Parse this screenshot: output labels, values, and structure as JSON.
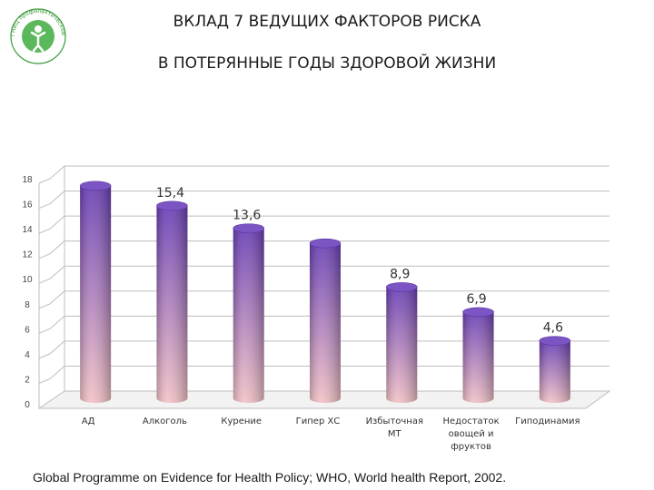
{
  "title_line1": "ВКЛАД 7 ВЕДУЩИХ ФАКТОРОВ РИСКА",
  "title_line2": "В ПОТЕРЯННЫЕ ГОДЫ ЗДОРОВОЙ ЖИЗНИ",
  "logo_text": "ГНИЦ профилактической медицины",
  "source": "Global Programme on Evidence for Health Policy; WHO, World health Report, 2002.",
  "colors": {
    "bar_top": "#6a3fb6",
    "bar_bottom": "#f3c3c6",
    "grid": "#bdbdbd"
  },
  "chart_data": {
    "type": "bar",
    "title": "ВКЛАД 7 ВЕДУЩИХ ФАКТОРОВ РИСКА В ПОТЕРЯННЫЕ ГОДЫ ЗДОРОВОЙ ЖИЗНИ",
    "categories": [
      [
        "АД"
      ],
      [
        "Алкоголь"
      ],
      [
        "Курение"
      ],
      [
        "Гипер ХС"
      ],
      [
        "Избыточная",
        "МТ"
      ],
      [
        "Недостаток",
        "овощей и",
        "фруктов"
      ],
      [
        "Гиподинамия"
      ]
    ],
    "values": [
      17,
      15.4,
      13.6,
      12.4,
      8.9,
      6.9,
      4.6
    ],
    "data_labels": [
      "",
      "15,4",
      "13,6",
      "",
      "8,9",
      "6,9",
      "4,6"
    ],
    "yticks": [
      "0",
      "2",
      "4",
      "6",
      "8",
      "10",
      "12",
      "14",
      "16",
      "18"
    ],
    "ylim": [
      0,
      18
    ],
    "grid": true
  }
}
